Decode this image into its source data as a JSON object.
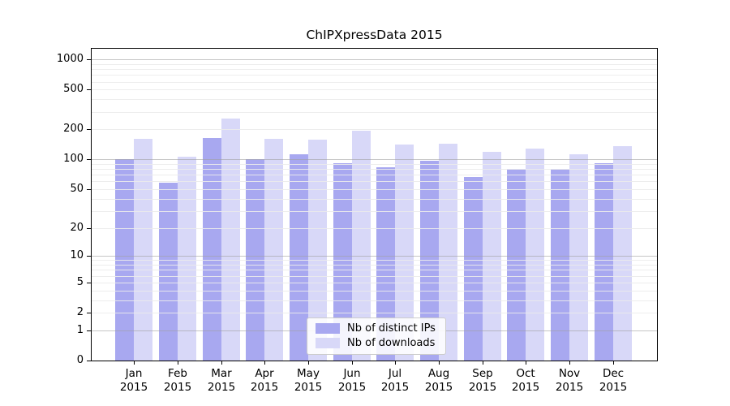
{
  "chart_data": {
    "type": "bar",
    "title": "ChIPXpressData 2015",
    "categories": [
      "Jan",
      "Feb",
      "Mar",
      "Apr",
      "May",
      "Jun",
      "Jul",
      "Aug",
      "Sep",
      "Oct",
      "Nov",
      "Dec"
    ],
    "year": "2015",
    "series": [
      {
        "name": "Nb of distinct IPs",
        "color": "#a8a8f0",
        "values": [
          100,
          58,
          164,
          100,
          112,
          92,
          84,
          97,
          67,
          81,
          80,
          92
        ]
      },
      {
        "name": "Nb of downloads",
        "color": "#d8d8f8",
        "values": [
          160,
          106,
          257,
          160,
          157,
          195,
          140,
          143,
          120,
          128,
          112,
          135
        ]
      }
    ],
    "xlabel": "",
    "ylabel": "",
    "yscale": "log1p",
    "yticks": [
      1000,
      500,
      200,
      100,
      50,
      20,
      10,
      5,
      2,
      1,
      0
    ],
    "ylim": [
      0,
      1100
    ],
    "grid": "horizontal major (1,10,100,1000) and minor log gridlines drawn over bars",
    "legend_position": "lower center inside plot"
  },
  "colors": {
    "distinct_ips": "#a8a8f0",
    "downloads": "#d8d8f8",
    "major_grid": "rgba(160,160,160,0.6)",
    "minor_grid": "rgba(235,235,235,0.9)",
    "axis": "#000000"
  }
}
